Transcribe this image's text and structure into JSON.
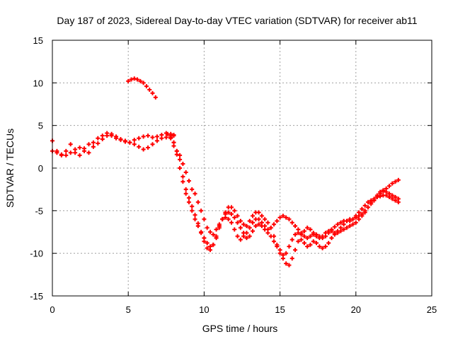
{
  "chart_data": {
    "type": "scatter",
    "title": "Day 187 of 2023, Sidereal Day-to-day VTEC variation (SDTVAR) for receiver ab11",
    "xlabel": "GPS time / hours",
    "ylabel": "SDTVAR / TECUs",
    "xlim": [
      0,
      25
    ],
    "ylim": [
      -15,
      15
    ],
    "x_ticks": [
      0,
      5,
      10,
      15,
      20,
      25
    ],
    "x_tick_labels": [
      "0",
      "5",
      "10",
      "15",
      "20",
      "25"
    ],
    "y_ticks": [
      -15,
      -10,
      -5,
      0,
      5,
      10,
      15
    ],
    "y_tick_labels": [
      "-15",
      "-10",
      "-5",
      "0",
      "5",
      "10",
      "15"
    ],
    "grid": true,
    "marker": "+",
    "color": "#ff0000",
    "series": [
      {
        "name": "s1",
        "x": [
          0.0,
          0.3,
          0.6,
          0.9,
          1.2,
          1.5,
          1.8,
          2.1,
          2.4,
          2.7,
          3.0,
          3.3,
          3.6,
          3.9,
          4.2,
          4.5,
          4.8,
          5.1,
          5.4,
          5.7,
          6.0,
          6.3,
          6.6,
          6.9,
          7.2,
          7.5,
          7.8,
          8.0
        ],
        "y": [
          3.2,
          2.0,
          1.5,
          2.0,
          2.8,
          1.8,
          1.5,
          2.3,
          2.8,
          3.0,
          3.5,
          3.8,
          4.1,
          3.8,
          3.5,
          3.3,
          3.2,
          3.0,
          2.8,
          2.5,
          2.2,
          2.4,
          2.8,
          3.2,
          3.5,
          3.6,
          3.8,
          3.9
        ]
      },
      {
        "name": "s2",
        "x": [
          0.0,
          0.3,
          0.6,
          0.9,
          1.2,
          1.5,
          1.8,
          2.1,
          2.4,
          2.7,
          3.0,
          3.3,
          3.6,
          3.9,
          4.2,
          4.5,
          4.8,
          5.1,
          5.4,
          5.7,
          6.0,
          6.3,
          6.6,
          6.9,
          7.2,
          7.5,
          7.8,
          8.0
        ],
        "y": [
          2.0,
          1.8,
          1.6,
          1.5,
          1.8,
          2.2,
          2.4,
          2.0,
          1.8,
          2.5,
          2.9,
          3.4,
          3.8,
          4.0,
          3.7,
          3.4,
          3.1,
          3.0,
          3.3,
          3.5,
          3.7,
          3.8,
          3.6,
          3.7,
          3.9,
          4.1,
          4.0,
          3.8
        ]
      },
      {
        "name": "s3",
        "x": [
          5.0,
          5.2,
          5.4,
          5.6,
          5.8,
          6.0,
          6.2,
          6.4,
          6.6,
          6.8
        ],
        "y": [
          10.2,
          10.4,
          10.5,
          10.4,
          10.2,
          10.0,
          9.6,
          9.2,
          8.8,
          8.3
        ]
      },
      {
        "name": "s4",
        "x": [
          7.8,
          8.0,
          8.2,
          8.4,
          8.6,
          8.8,
          9.0,
          9.2,
          9.4,
          9.6,
          9.8,
          10.0,
          10.2,
          10.4,
          10.6,
          10.8,
          11.0,
          11.2,
          11.4,
          11.6,
          11.8,
          12.0,
          12.2,
          12.4,
          12.6,
          12.8,
          13.0,
          13.2,
          13.4,
          13.6,
          13.8,
          14.0,
          14.2,
          14.4,
          14.6,
          14.8,
          15.0,
          15.2,
          15.4,
          15.6,
          15.8,
          16.0,
          16.2,
          16.4,
          16.6,
          16.8,
          17.0,
          17.2,
          17.4,
          17.6,
          17.8,
          18.0,
          18.2,
          18.4,
          18.6,
          18.8,
          19.0,
          19.2,
          19.4,
          19.6,
          19.8,
          20.0,
          20.2,
          20.4,
          20.6,
          20.8,
          21.0,
          21.2,
          21.4,
          21.6,
          21.8,
          22.0,
          22.2,
          22.4,
          22.6,
          22.8
        ],
        "y": [
          3.5,
          3.0,
          2.0,
          1.0,
          -1.0,
          -2.5,
          -3.5,
          -4.5,
          -5.5,
          -6.5,
          -7.5,
          -8.2,
          -8.8,
          -9.2,
          -9.0,
          -8.2,
          -7.0,
          -6.0,
          -5.2,
          -4.6,
          -4.6,
          -5.0,
          -5.6,
          -6.2,
          -6.6,
          -6.8,
          -6.2,
          -5.6,
          -5.2,
          -5.2,
          -5.6,
          -6.0,
          -6.4,
          -7.0,
          -8.0,
          -9.0,
          -10.0,
          -10.6,
          -11.2,
          -11.4,
          -10.6,
          -9.6,
          -8.6,
          -8.4,
          -8.8,
          -9.2,
          -9.0,
          -8.6,
          -8.8,
          -9.2,
          -9.4,
          -9.2,
          -8.8,
          -8.2,
          -7.8,
          -7.6,
          -7.4,
          -7.2,
          -7.0,
          -6.8,
          -6.6,
          -6.4,
          -6.0,
          -5.6,
          -5.2,
          -4.6,
          -4.2,
          -3.8,
          -3.4,
          -3.0,
          -2.7,
          -2.4,
          -2.1,
          -1.8,
          -1.6,
          -1.4
        ]
      },
      {
        "name": "s5",
        "x": [
          7.6,
          7.8,
          8.0,
          8.2,
          8.4,
          8.6,
          8.8,
          9.0,
          9.2,
          9.4,
          9.6,
          9.8,
          10.0,
          10.2,
          10.4,
          10.6,
          10.8,
          11.0,
          11.2,
          11.4,
          11.6,
          11.8,
          12.0,
          12.2,
          12.4,
          12.6,
          12.8,
          13.0,
          13.2,
          13.4,
          13.6,
          13.8,
          14.0,
          14.2,
          14.4,
          14.6,
          14.8,
          15.0,
          15.2,
          15.4,
          15.6,
          15.8,
          16.0,
          16.2,
          16.4,
          16.6,
          16.8,
          17.0,
          17.2,
          17.4,
          17.6,
          17.8,
          18.0,
          18.2,
          18.4,
          18.6,
          18.8,
          19.0,
          19.2,
          19.4,
          19.6,
          19.8,
          20.0,
          20.2,
          20.4,
          20.6,
          20.8,
          21.0,
          21.2,
          21.4,
          21.6,
          21.8,
          22.0,
          22.2,
          22.4,
          22.6,
          22.8
        ],
        "y": [
          4.0,
          3.6,
          2.6,
          1.6,
          0.0,
          -1.6,
          -3.0,
          -4.0,
          -5.0,
          -6.0,
          -6.8,
          -7.6,
          -8.6,
          -9.4,
          -9.6,
          -9.0,
          -8.0,
          -6.8,
          -6.0,
          -5.4,
          -5.2,
          -5.4,
          -5.8,
          -6.4,
          -7.0,
          -7.6,
          -8.2,
          -8.0,
          -7.4,
          -6.8,
          -6.6,
          -6.8,
          -7.2,
          -7.6,
          -8.0,
          -8.6,
          -9.2,
          -9.6,
          -10.2,
          -10.0,
          -9.2,
          -8.4,
          -7.8,
          -7.6,
          -7.8,
          -8.0,
          -8.2,
          -8.0,
          -7.8,
          -7.8,
          -8.0,
          -8.2,
          -8.0,
          -7.6,
          -7.2,
          -6.9,
          -6.6,
          -6.4,
          -6.2,
          -6.2,
          -6.2,
          -6.0,
          -5.6,
          -5.2,
          -4.8,
          -4.4,
          -4.0,
          -3.8,
          -3.6,
          -3.4,
          -3.3,
          -3.2,
          -3.2,
          -3.4,
          -3.6,
          -3.8,
          -4.0
        ]
      },
      {
        "name": "s6",
        "x": [
          8.0,
          8.2,
          8.4,
          8.6,
          8.8,
          9.0,
          9.2,
          9.4,
          9.6,
          9.8,
          10.0,
          10.2,
          10.4,
          10.6,
          10.8,
          11.0,
          11.2,
          11.4,
          11.6,
          11.8,
          12.0,
          12.2,
          12.4,
          12.6,
          12.8,
          13.0,
          13.2,
          13.4,
          13.6,
          13.8,
          14.0,
          14.2,
          14.4,
          14.6,
          14.8,
          15.0,
          15.2,
          15.4,
          15.6,
          15.8,
          16.0,
          16.2,
          16.4,
          16.6,
          16.8,
          17.0,
          17.2,
          17.4,
          17.6,
          17.8,
          18.0,
          18.2,
          18.4,
          18.6,
          18.8,
          19.0,
          19.2,
          19.4,
          19.6,
          19.8,
          20.0,
          20.2,
          20.4,
          20.6,
          20.8,
          21.0,
          21.2,
          21.4,
          21.6,
          21.8,
          22.0,
          22.2,
          22.4,
          22.6,
          22.8
        ],
        "y": [
          3.0,
          2.0,
          1.5,
          0.5,
          -0.5,
          -1.5,
          -2.5,
          -3.0,
          -4.0,
          -5.0,
          -6.0,
          -7.0,
          -7.5,
          -7.8,
          -7.2,
          -6.6,
          -6.0,
          -5.8,
          -6.0,
          -6.4,
          -7.2,
          -8.0,
          -8.4,
          -8.0,
          -7.6,
          -7.0,
          -6.4,
          -6.0,
          -6.0,
          -6.4,
          -6.8,
          -7.2,
          -7.0,
          -6.6,
          -6.2,
          -5.8,
          -5.6,
          -5.8,
          -6.0,
          -6.4,
          -6.8,
          -7.2,
          -7.6,
          -7.4,
          -7.0,
          -7.2,
          -7.6,
          -8.0,
          -8.2,
          -8.0,
          -7.6,
          -7.4,
          -7.4,
          -7.6,
          -7.4,
          -7.0,
          -6.6,
          -6.2,
          -6.0,
          -6.0,
          -5.8,
          -5.6,
          -5.4,
          -5.0,
          -4.6,
          -4.0,
          -3.6,
          -3.2,
          -2.8,
          -2.6,
          -2.8,
          -3.0,
          -3.2,
          -3.4,
          -3.6
        ]
      }
    ]
  }
}
